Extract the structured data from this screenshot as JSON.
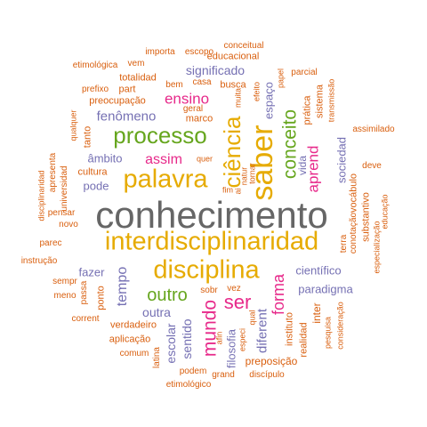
{
  "colors": {
    "orange": "#d95f0e",
    "slate": "#7570b3",
    "green": "#66a61e",
    "magenta": "#e7298a",
    "gold": "#e6ab02",
    "gray": "#666666"
  },
  "words": [
    {
      "text": "conhecimento",
      "color": "gray"
    },
    {
      "text": "interdisciplinaridad",
      "color": "gold"
    },
    {
      "text": "disciplina",
      "color": "gold"
    },
    {
      "text": "palavra",
      "color": "gold"
    },
    {
      "text": "processo",
      "color": "green"
    },
    {
      "text": "saber",
      "color": "gold"
    },
    {
      "text": "ciência",
      "color": "gold"
    },
    {
      "text": "conceito",
      "color": "green"
    },
    {
      "text": "aprend",
      "color": "magenta"
    },
    {
      "text": "ensino",
      "color": "magenta"
    },
    {
      "text": "assim",
      "color": "magenta"
    },
    {
      "text": "mundo",
      "color": "magenta"
    },
    {
      "text": "ser",
      "color": "magenta"
    },
    {
      "text": "forma",
      "color": "magenta"
    },
    {
      "text": "outro",
      "color": "green"
    },
    {
      "text": "tempo",
      "color": "slate"
    },
    {
      "text": "outra",
      "color": "slate"
    },
    {
      "text": "sentido",
      "color": "slate"
    },
    {
      "text": "escolar",
      "color": "slate"
    },
    {
      "text": "filosofia",
      "color": "slate"
    },
    {
      "text": "diferent",
      "color": "slate"
    },
    {
      "text": "paradigma",
      "color": "slate"
    },
    {
      "text": "científico",
      "color": "slate"
    },
    {
      "text": "significado",
      "color": "slate"
    },
    {
      "text": "fenômeno",
      "color": "slate"
    },
    {
      "text": "espaço",
      "color": "slate"
    },
    {
      "text": "sociedad",
      "color": "slate"
    },
    {
      "text": "vida",
      "color": "slate"
    },
    {
      "text": "âmbito",
      "color": "slate"
    },
    {
      "text": "pode",
      "color": "slate"
    },
    {
      "text": "fazer",
      "color": "slate"
    },
    {
      "text": "educacional",
      "color": "orange"
    },
    {
      "text": "totalidad",
      "color": "orange"
    },
    {
      "text": "preocupação",
      "color": "orange"
    },
    {
      "text": "busca",
      "color": "orange"
    },
    {
      "text": "marco",
      "color": "orange"
    },
    {
      "text": "part",
      "color": "orange"
    },
    {
      "text": "prática",
      "color": "orange"
    },
    {
      "text": "sistema",
      "color": "orange"
    },
    {
      "text": "transmissão",
      "color": "orange"
    },
    {
      "text": "assimilado",
      "color": "orange"
    },
    {
      "text": "deve",
      "color": "orange"
    },
    {
      "text": "vocábulo",
      "color": "orange"
    },
    {
      "text": "substantivo",
      "color": "orange"
    },
    {
      "text": "conotação",
      "color": "orange"
    },
    {
      "text": "educação",
      "color": "orange"
    },
    {
      "text": "especialização",
      "color": "orange"
    },
    {
      "text": "terra",
      "color": "orange"
    },
    {
      "text": "cultura",
      "color": "orange"
    },
    {
      "text": "universidad",
      "color": "orange"
    },
    {
      "text": "apresenta",
      "color": "orange"
    },
    {
      "text": "disciplinaridad",
      "color": "orange"
    },
    {
      "text": "pensar",
      "color": "orange"
    },
    {
      "text": "novo",
      "color": "orange"
    },
    {
      "text": "parec",
      "color": "orange"
    },
    {
      "text": "instrução",
      "color": "orange"
    },
    {
      "text": "sempr",
      "color": "orange"
    },
    {
      "text": "meno",
      "color": "orange"
    },
    {
      "text": "passa",
      "color": "orange"
    },
    {
      "text": "ponto",
      "color": "orange"
    },
    {
      "text": "corrent",
      "color": "orange"
    },
    {
      "text": "verdadeiro",
      "color": "orange"
    },
    {
      "text": "aplicação",
      "color": "orange"
    },
    {
      "text": "comum",
      "color": "orange"
    },
    {
      "text": "latina",
      "color": "orange"
    },
    {
      "text": "podem",
      "color": "orange"
    },
    {
      "text": "grand",
      "color": "orange"
    },
    {
      "text": "etimológico",
      "color": "orange"
    },
    {
      "text": "discípulo",
      "color": "orange"
    },
    {
      "text": "preposição",
      "color": "orange"
    },
    {
      "text": "instituto",
      "color": "orange"
    },
    {
      "text": "realidad",
      "color": "orange"
    },
    {
      "text": "inter",
      "color": "orange"
    },
    {
      "text": "pesquisa",
      "color": "orange"
    },
    {
      "text": "consideração",
      "color": "orange"
    },
    {
      "text": "especi",
      "color": "orange"
    },
    {
      "text": "qual",
      "color": "orange"
    },
    {
      "text": "afin",
      "color": "orange"
    },
    {
      "text": "vez",
      "color": "orange"
    },
    {
      "text": "sobr",
      "color": "orange"
    },
    {
      "text": "importa",
      "color": "orange"
    },
    {
      "text": "escopo",
      "color": "orange"
    },
    {
      "text": "conceitual",
      "color": "orange"
    },
    {
      "text": "etimológica",
      "color": "orange"
    },
    {
      "text": "vem",
      "color": "orange"
    },
    {
      "text": "prefixo",
      "color": "orange"
    },
    {
      "text": "bem",
      "color": "orange"
    },
    {
      "text": "casa",
      "color": "orange"
    },
    {
      "text": "geral",
      "color": "orange"
    },
    {
      "text": "muita",
      "color": "orange"
    },
    {
      "text": "efeito",
      "color": "orange"
    },
    {
      "text": "papel",
      "color": "orange"
    },
    {
      "text": "parcial",
      "color": "orange"
    },
    {
      "text": "qualquer",
      "color": "orange"
    },
    {
      "text": "tanto",
      "color": "orange"
    },
    {
      "text": "quer",
      "color": "orange"
    },
    {
      "text": "natur",
      "color": "orange"
    },
    {
      "text": "tornar",
      "color": "orange"
    },
    {
      "text": "fim",
      "color": "orange"
    },
    {
      "text": "ai",
      "color": "orange"
    }
  ]
}
